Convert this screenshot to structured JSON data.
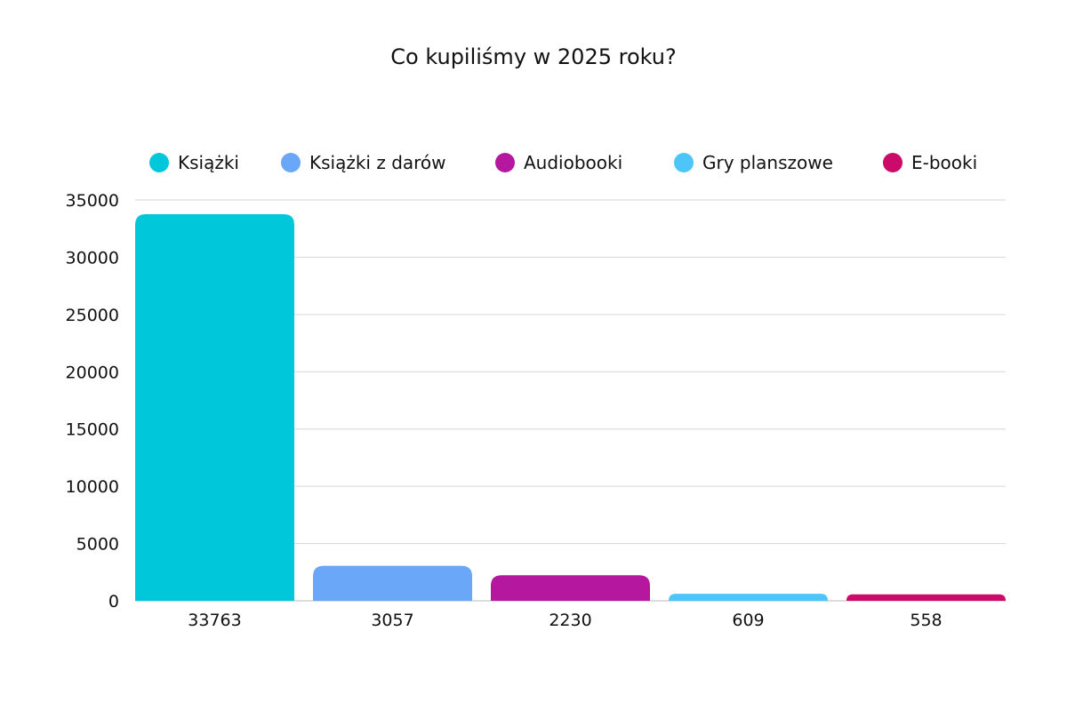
{
  "chart_data": {
    "type": "bar",
    "title": "Co kupiliśmy w 2025 roku?",
    "categories": [
      "Książki",
      "Książki z darów",
      "Audiobooki",
      "Gry planszowe",
      "E-booki"
    ],
    "values": [
      33763,
      3057,
      2230,
      609,
      558
    ],
    "colors": [
      "#00C8DA",
      "#6AA7F8",
      "#B5179E",
      "#4CC5F8",
      "#CC0A6A"
    ],
    "xlabel": "",
    "ylabel": "",
    "ylim": [
      0,
      35000
    ],
    "yticks": [
      0,
      5000,
      10000,
      15000,
      20000,
      25000,
      30000,
      35000
    ],
    "x_tick_labels": [
      "33763",
      "3057",
      "2230",
      "609",
      "558"
    ],
    "grid": true,
    "legend_position": "top"
  }
}
